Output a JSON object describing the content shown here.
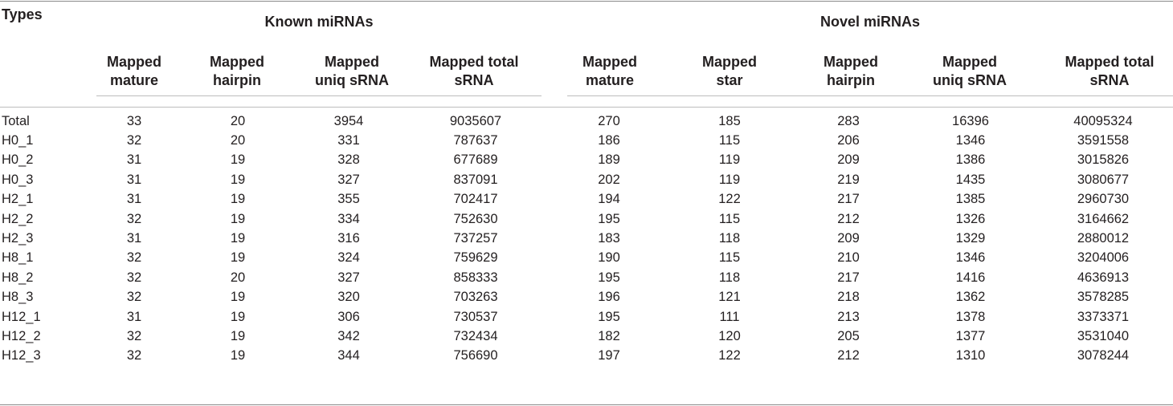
{
  "table": {
    "types_label": "Types",
    "groups": [
      {
        "label": "Known miRNAs"
      },
      {
        "label": "Novel miRNAs"
      }
    ],
    "columns": [
      "Mapped\nmature",
      "Mapped\nhairpin",
      "Mapped\nuniq sRNA",
      "Mapped total\nsRNA",
      "Mapped\nmature",
      "Mapped\nstar",
      "Mapped\nhairpin",
      "Mapped\nuniq sRNA",
      "Mapped total\nsRNA"
    ],
    "rows": [
      [
        "Total",
        "33",
        "20",
        "3954",
        "9035607",
        "270",
        "185",
        "283",
        "16396",
        "40095324"
      ],
      [
        "H0_1",
        "32",
        "20",
        "331",
        "787637",
        "186",
        "115",
        "206",
        "1346",
        "3591558"
      ],
      [
        "H0_2",
        "31",
        "19",
        "328",
        "677689",
        "189",
        "119",
        "209",
        "1386",
        "3015826"
      ],
      [
        "H0_3",
        "31",
        "19",
        "327",
        "837091",
        "202",
        "119",
        "219",
        "1435",
        "3080677"
      ],
      [
        "H2_1",
        "31",
        "19",
        "355",
        "702417",
        "194",
        "122",
        "217",
        "1385",
        "2960730"
      ],
      [
        "H2_2",
        "32",
        "19",
        "334",
        "752630",
        "195",
        "115",
        "212",
        "1326",
        "3164662"
      ],
      [
        "H2_3",
        "31",
        "19",
        "316",
        "737257",
        "183",
        "118",
        "209",
        "1329",
        "2880012"
      ],
      [
        "H8_1",
        "32",
        "19",
        "324",
        "759629",
        "190",
        "115",
        "210",
        "1346",
        "3204006"
      ],
      [
        "H8_2",
        "32",
        "20",
        "327",
        "858333",
        "195",
        "118",
        "217",
        "1416",
        "4636913"
      ],
      [
        "H8_3",
        "32",
        "19",
        "320",
        "703263",
        "196",
        "121",
        "218",
        "1362",
        "3578285"
      ],
      [
        "H12_1",
        "31",
        "19",
        "306",
        "730537",
        "195",
        "111",
        "213",
        "1378",
        "3373371"
      ],
      [
        "H12_2",
        "32",
        "19",
        "342",
        "732434",
        "182",
        "120",
        "205",
        "1377",
        "3531040"
      ],
      [
        "H12_3",
        "32",
        "19",
        "344",
        "756690",
        "197",
        "122",
        "212",
        "1310",
        "3078244"
      ]
    ]
  }
}
